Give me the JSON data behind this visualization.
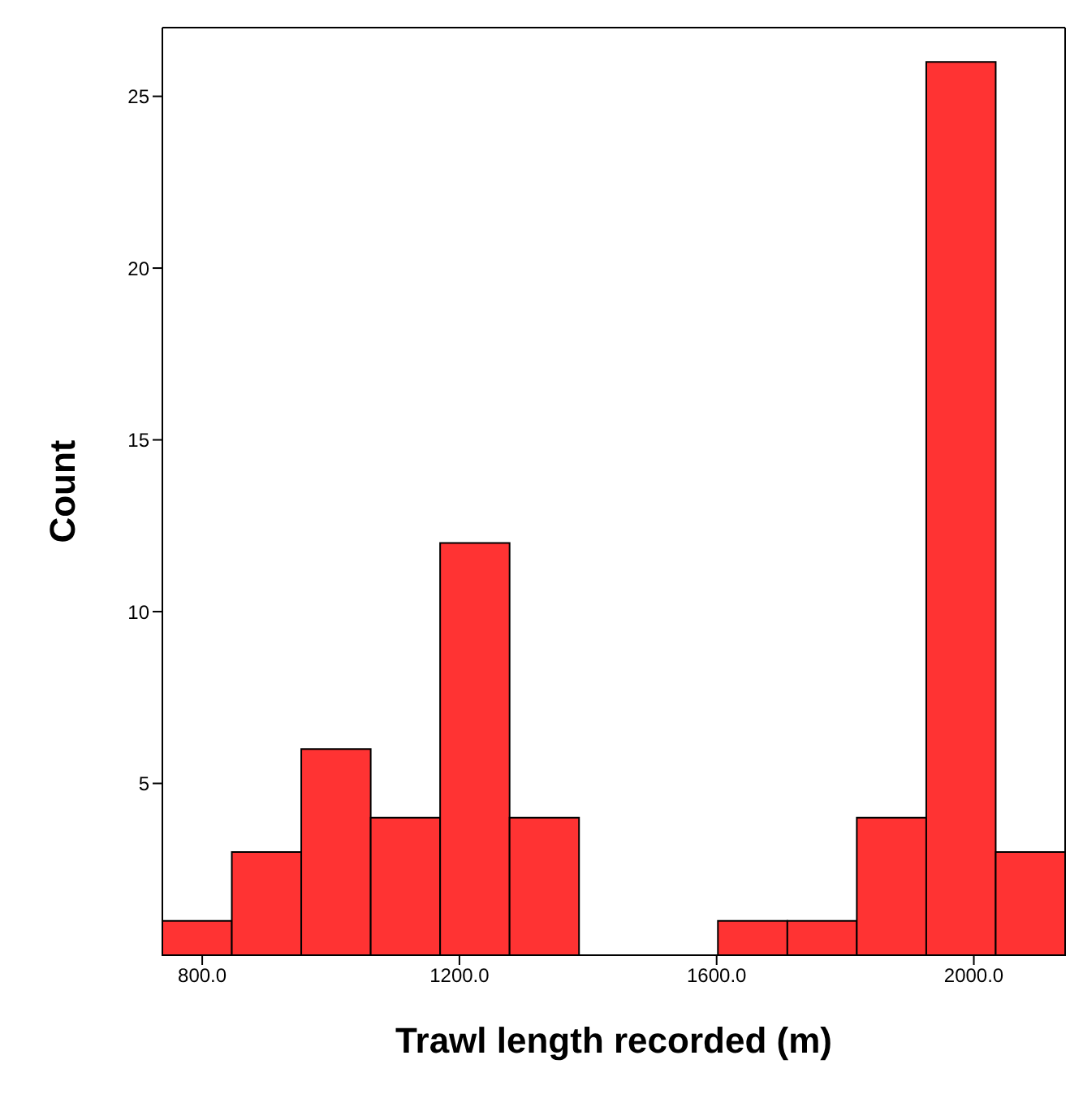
{
  "chart_data": {
    "type": "histogram",
    "xlabel": "Trawl length recorded (m)",
    "ylabel": "Count",
    "bins": [
      738,
      846,
      954,
      1062,
      1170,
      1278,
      1386,
      1494,
      1602,
      1710,
      1818,
      1926,
      2034,
      2142
    ],
    "values": [
      1,
      3,
      6,
      4,
      12,
      4,
      0,
      0,
      1,
      1,
      4,
      26,
      3
    ],
    "color": "#ff3333",
    "xlim": [
      738,
      2142
    ],
    "xticks": [
      {
        "value": 800,
        "label": "800.0"
      },
      {
        "value": 1200,
        "label": "1200.0"
      },
      {
        "value": 1600,
        "label": "1600.0"
      },
      {
        "value": 2000,
        "label": "2000.0"
      }
    ],
    "ylim": [
      0,
      27
    ],
    "yticks": [
      5,
      10,
      15,
      20,
      25
    ]
  }
}
